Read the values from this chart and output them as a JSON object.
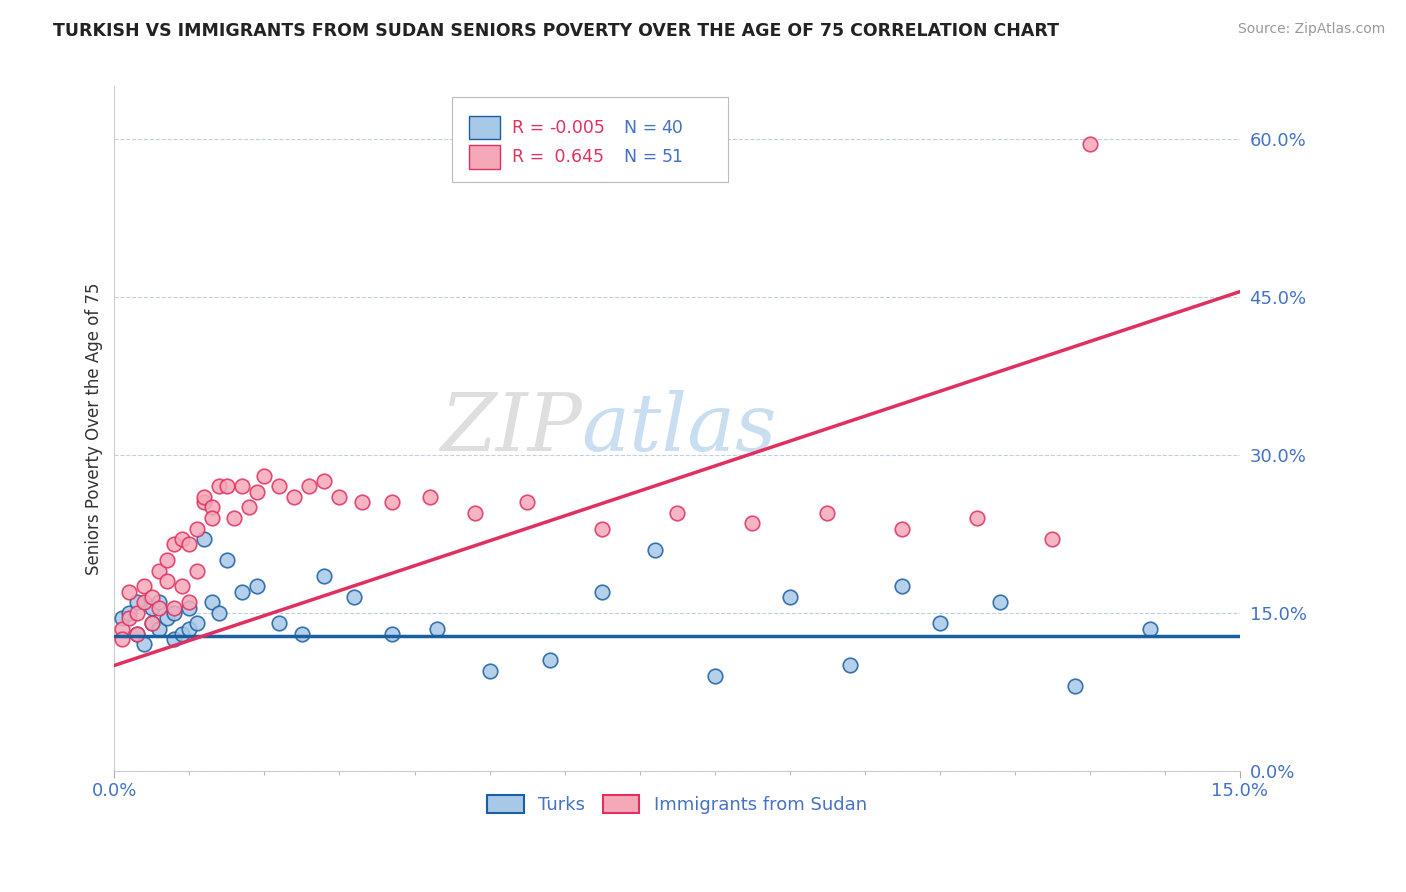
{
  "title": "TURKISH VS IMMIGRANTS FROM SUDAN SENIORS POVERTY OVER THE AGE OF 75 CORRELATION CHART",
  "source": "Source: ZipAtlas.com",
  "ylabel": "Seniors Poverty Over the Age of 75",
  "ytick_labels": [
    "0.0%",
    "15.0%",
    "30.0%",
    "45.0%",
    "60.0%"
  ],
  "ytick_values": [
    0.0,
    0.15,
    0.3,
    0.45,
    0.6
  ],
  "xlim": [
    0.0,
    0.15
  ],
  "ylim": [
    0.0,
    0.65
  ],
  "color_turks": "#a8c8e8",
  "color_sudan": "#f4a8b8",
  "color_turks_line": "#1a5fa0",
  "color_sudan_line": "#e03060",
  "turks_x": [
    0.001,
    0.002,
    0.003,
    0.003,
    0.004,
    0.005,
    0.005,
    0.006,
    0.006,
    0.007,
    0.008,
    0.008,
    0.009,
    0.01,
    0.01,
    0.011,
    0.012,
    0.013,
    0.014,
    0.015,
    0.017,
    0.019,
    0.022,
    0.025,
    0.028,
    0.032,
    0.037,
    0.043,
    0.05,
    0.058,
    0.065,
    0.072,
    0.08,
    0.09,
    0.098,
    0.105,
    0.11,
    0.118,
    0.128,
    0.138
  ],
  "turks_y": [
    0.145,
    0.15,
    0.13,
    0.16,
    0.12,
    0.155,
    0.14,
    0.135,
    0.16,
    0.145,
    0.15,
    0.125,
    0.13,
    0.155,
    0.135,
    0.14,
    0.22,
    0.16,
    0.15,
    0.2,
    0.17,
    0.175,
    0.14,
    0.13,
    0.185,
    0.165,
    0.13,
    0.135,
    0.095,
    0.105,
    0.17,
    0.21,
    0.09,
    0.165,
    0.1,
    0.175,
    0.14,
    0.16,
    0.08,
    0.135
  ],
  "sudan_x": [
    0.001,
    0.001,
    0.002,
    0.002,
    0.003,
    0.003,
    0.004,
    0.004,
    0.005,
    0.005,
    0.006,
    0.006,
    0.007,
    0.007,
    0.008,
    0.008,
    0.009,
    0.009,
    0.01,
    0.01,
    0.011,
    0.011,
    0.012,
    0.012,
    0.013,
    0.013,
    0.014,
    0.015,
    0.016,
    0.017,
    0.018,
    0.019,
    0.02,
    0.022,
    0.024,
    0.026,
    0.028,
    0.03,
    0.033,
    0.037,
    0.042,
    0.048,
    0.055,
    0.065,
    0.075,
    0.085,
    0.095,
    0.105,
    0.115,
    0.125,
    0.13
  ],
  "sudan_y": [
    0.135,
    0.125,
    0.17,
    0.145,
    0.15,
    0.13,
    0.175,
    0.16,
    0.14,
    0.165,
    0.19,
    0.155,
    0.18,
    0.2,
    0.155,
    0.215,
    0.175,
    0.22,
    0.16,
    0.215,
    0.19,
    0.23,
    0.255,
    0.26,
    0.25,
    0.24,
    0.27,
    0.27,
    0.24,
    0.27,
    0.25,
    0.265,
    0.28,
    0.27,
    0.26,
    0.27,
    0.275,
    0.26,
    0.255,
    0.255,
    0.26,
    0.245,
    0.255,
    0.23,
    0.245,
    0.235,
    0.245,
    0.23,
    0.24,
    0.22,
    0.595
  ],
  "sudan_line_x0": 0.0,
  "sudan_line_y0": 0.1,
  "sudan_line_x1": 0.15,
  "sudan_line_y1": 0.455,
  "turks_line_x0": 0.0,
  "turks_line_y0": 0.128,
  "turks_line_x1": 0.15,
  "turks_line_y1": 0.128
}
